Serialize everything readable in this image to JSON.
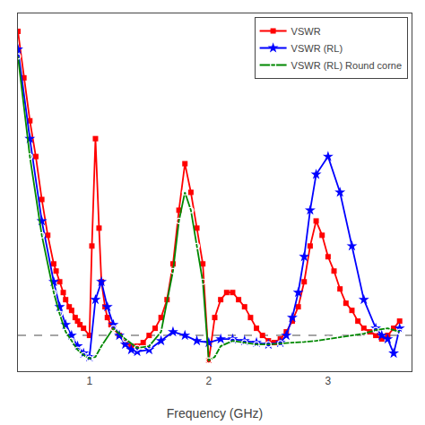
{
  "chart_data": {
    "type": "line",
    "xlabel": "Frequency (GHz)",
    "xlim": [
      0.4,
      3.7
    ],
    "xticks": [
      1,
      2,
      3
    ],
    "ylim": [
      1.0,
      11.0
    ],
    "tick_labels": "x",
    "grid": false,
    "legend": "upper right",
    "hline": {
      "value": 2.0,
      "color": "#888888",
      "line_style": "dashed"
    },
    "series": [
      {
        "name": "VSWR",
        "color": "#ff0000",
        "marker": "square",
        "x": [
          0.4,
          0.45,
          0.5,
          0.55,
          0.6,
          0.65,
          0.7,
          0.72,
          0.75,
          0.78,
          0.8,
          0.83,
          0.85,
          0.88,
          0.9,
          0.92,
          0.95,
          1.0,
          1.02,
          1.05,
          1.08,
          1.1,
          1.13,
          1.15,
          1.18,
          1.2,
          1.25,
          1.3,
          1.35,
          1.4,
          1.45,
          1.5,
          1.55,
          1.6,
          1.65,
          1.7,
          1.75,
          1.8,
          1.85,
          1.9,
          1.95,
          2.0,
          2.05,
          2.1,
          2.15,
          2.2,
          2.25,
          2.3,
          2.35,
          2.4,
          2.45,
          2.5,
          2.55,
          2.6,
          2.65,
          2.7,
          2.75,
          2.8,
          2.85,
          2.9,
          2.95,
          3.0,
          3.05,
          3.1,
          3.15,
          3.2,
          3.25,
          3.3,
          3.35,
          3.4,
          3.45,
          3.5,
          3.55,
          3.6
        ],
        "values": [
          10.5,
          9.2,
          8.0,
          7.0,
          5.8,
          4.8,
          4.0,
          3.8,
          3.5,
          3.2,
          3.0,
          2.8,
          2.7,
          2.5,
          2.4,
          2.3,
          2.2,
          2.0,
          4.5,
          7.5,
          5.0,
          3.5,
          2.8,
          2.5,
          2.3,
          2.2,
          2.0,
          1.8,
          1.7,
          1.7,
          1.8,
          2.0,
          2.2,
          2.5,
          3.0,
          4.0,
          5.5,
          6.8,
          6.0,
          5.0,
          4.0,
          1.3,
          2.5,
          3.0,
          3.2,
          3.2,
          3.0,
          2.8,
          2.5,
          2.2,
          2.0,
          1.85,
          1.8,
          1.9,
          2.1,
          2.4,
          2.8,
          3.5,
          4.5,
          5.2,
          4.8,
          4.2,
          3.8,
          3.3,
          2.9,
          2.7,
          2.4,
          2.2,
          2.1,
          2.0,
          1.9,
          2.0,
          2.2,
          2.4
        ]
      },
      {
        "name": "VSWR (RL)",
        "color": "#0000ff",
        "marker": "star",
        "x": [
          0.4,
          0.5,
          0.6,
          0.7,
          0.75,
          0.8,
          0.85,
          0.9,
          0.95,
          1.0,
          1.05,
          1.1,
          1.15,
          1.2,
          1.25,
          1.3,
          1.35,
          1.4,
          1.5,
          1.6,
          1.7,
          1.8,
          1.9,
          2.0,
          2.1,
          2.2,
          2.3,
          2.4,
          2.5,
          2.6,
          2.65,
          2.7,
          2.75,
          2.8,
          2.85,
          2.9,
          3.0,
          3.1,
          3.2,
          3.3,
          3.4,
          3.45,
          3.5,
          3.55,
          3.6
        ],
        "values": [
          10.0,
          7.5,
          5.2,
          3.5,
          2.8,
          2.3,
          2.0,
          1.7,
          1.5,
          1.4,
          3.0,
          3.5,
          2.8,
          2.3,
          2.0,
          1.75,
          1.6,
          1.55,
          1.6,
          1.85,
          2.1,
          2.0,
          1.85,
          1.8,
          1.9,
          1.9,
          1.85,
          1.8,
          1.75,
          1.8,
          2.0,
          2.5,
          3.2,
          4.2,
          5.5,
          6.5,
          7.0,
          6.0,
          4.5,
          3.0,
          2.2,
          2.0,
          1.9,
          1.5,
          2.2
        ]
      },
      {
        "name": "VSWR (RL) Round corne",
        "color": "#008800",
        "marker": "circle-open",
        "x": [
          0.4,
          0.5,
          0.6,
          0.7,
          0.75,
          0.8,
          0.85,
          0.9,
          0.95,
          1.0,
          1.05,
          1.1,
          1.2,
          1.3,
          1.4,
          1.5,
          1.6,
          1.7,
          1.75,
          1.8,
          1.85,
          1.9,
          1.95,
          2.0,
          2.05,
          2.1,
          2.2,
          2.3,
          2.4,
          2.5,
          2.6,
          2.7,
          2.8,
          2.9,
          3.0,
          3.1,
          3.2,
          3.3,
          3.4,
          3.5,
          3.6
        ],
        "values": [
          9.8,
          7.0,
          4.8,
          3.2,
          2.6,
          2.1,
          1.85,
          1.6,
          1.45,
          1.35,
          1.4,
          1.7,
          2.2,
          1.9,
          1.65,
          1.7,
          2.1,
          3.8,
          5.2,
          6.0,
          5.5,
          4.5,
          3.5,
          1.3,
          1.4,
          1.7,
          1.85,
          1.8,
          1.75,
          1.75,
          1.78,
          1.8,
          1.82,
          1.85,
          1.9,
          1.95,
          2.0,
          2.05,
          2.15,
          2.2,
          2.1
        ]
      }
    ]
  }
}
